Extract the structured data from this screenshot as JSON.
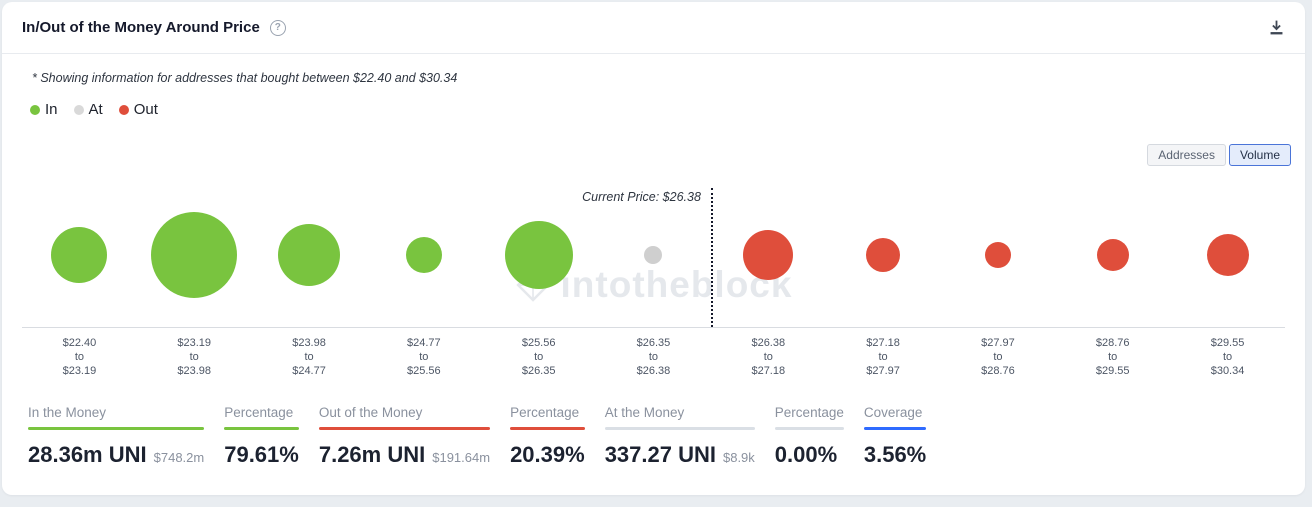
{
  "header": {
    "title": "In/Out of the Money Around Price"
  },
  "subtitle": "* Showing information for addresses that bought between $22.40 and $30.34",
  "legend": {
    "items": [
      {
        "label": "In",
        "color": "#79c43f"
      },
      {
        "label": "At",
        "color": "#d9d9d9"
      },
      {
        "label": "Out",
        "color": "#df4e3b"
      }
    ]
  },
  "view_toggle": {
    "options": [
      {
        "label": "Addresses",
        "selected": false
      },
      {
        "label": "Volume",
        "selected": true
      }
    ]
  },
  "chart": {
    "current_price_label": "Current Price: $26.38",
    "watermark": "intotheblock",
    "tick_separator": "to",
    "status_colors": {
      "in": "#79c43f",
      "at": "#cfcfcf",
      "out": "#df4e3b"
    }
  },
  "chart_data": {
    "type": "scatter",
    "subtype": "bubble",
    "title": "In/Out of the Money Around Price",
    "current_price": "$26.38",
    "size_encoding": "bubble diameter ~ UNI volume bought within price range",
    "legend_entries": [
      "In",
      "At",
      "Out"
    ],
    "x_categories": [
      "$22.40 to $23.19",
      "$23.19 to $23.98",
      "$23.98 to $24.77",
      "$24.77 to $25.56",
      "$25.56 to $26.35",
      "$26.35 to $26.38",
      "$26.38 to $27.18",
      "$27.18 to $27.97",
      "$27.97 to $28.76",
      "$28.76 to $29.55",
      "$29.55 to $30.34"
    ],
    "bubbles": [
      {
        "from": "$22.40",
        "to": "$23.19",
        "status": "in",
        "diameter": 56
      },
      {
        "from": "$23.19",
        "to": "$23.98",
        "status": "in",
        "diameter": 86
      },
      {
        "from": "$23.98",
        "to": "$24.77",
        "status": "in",
        "diameter": 62
      },
      {
        "from": "$24.77",
        "to": "$25.56",
        "status": "in",
        "diameter": 36
      },
      {
        "from": "$25.56",
        "to": "$26.35",
        "status": "in",
        "diameter": 68
      },
      {
        "from": "$26.35",
        "to": "$26.38",
        "status": "at",
        "diameter": 18
      },
      {
        "from": "$26.38",
        "to": "$27.18",
        "status": "out",
        "diameter": 50
      },
      {
        "from": "$27.18",
        "to": "$27.97",
        "status": "out",
        "diameter": 34
      },
      {
        "from": "$27.97",
        "to": "$28.76",
        "status": "out",
        "diameter": 26
      },
      {
        "from": "$28.76",
        "to": "$29.55",
        "status": "out",
        "diameter": 32
      },
      {
        "from": "$29.55",
        "to": "$30.34",
        "status": "out",
        "diameter": 42
      }
    ]
  },
  "stats": [
    {
      "label": "In the Money",
      "value": "28.36m UNI",
      "secondary": "$748.2m",
      "underline_color": "#79c43f"
    },
    {
      "label": "Percentage",
      "value": "79.61%",
      "underline_color": "#79c43f"
    },
    {
      "label": "Out of the Money",
      "value": "7.26m UNI",
      "secondary": "$191.64m",
      "underline_color": "#df4e3b"
    },
    {
      "label": "Percentage",
      "value": "20.39%",
      "underline_color": "#df4e3b"
    },
    {
      "label": "At the Money",
      "value": "337.27 UNI",
      "secondary": "$8.9k",
      "underline_color": "#dadfe5"
    },
    {
      "label": "Percentage",
      "value": "0.00%",
      "underline_color": "#dadfe5"
    },
    {
      "label": "Coverage",
      "value": "3.56%",
      "underline_color": "#2f6bff"
    }
  ]
}
